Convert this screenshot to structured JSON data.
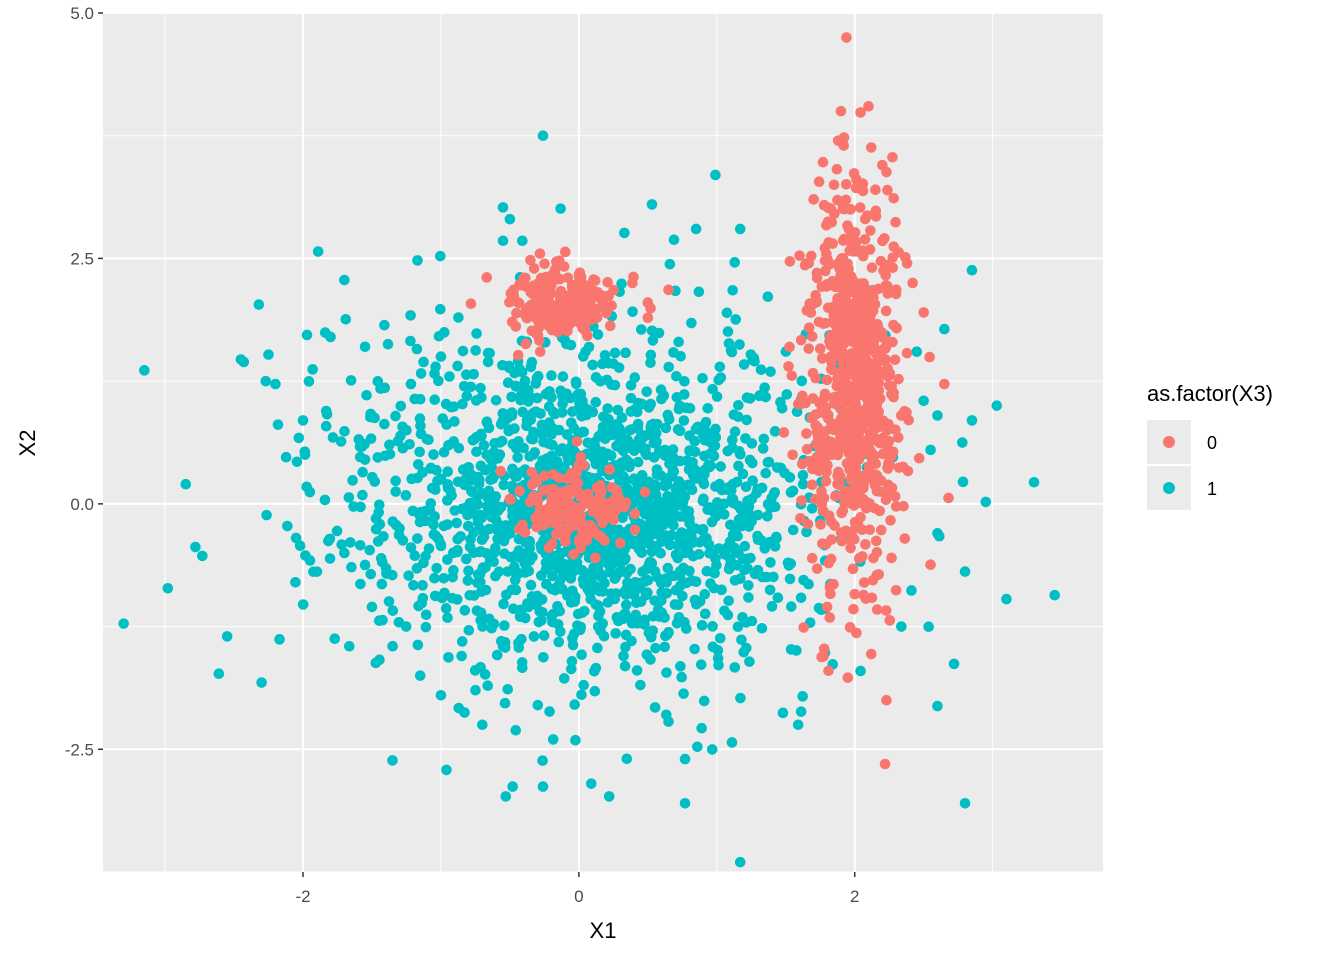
{
  "chart_data": {
    "type": "scatter",
    "title": "",
    "xlabel": "X1",
    "ylabel": "X2",
    "xlim": [
      -3.45,
      3.8
    ],
    "ylim": [
      -3.75,
      5.0
    ],
    "x_ticks": [
      -2,
      0,
      2
    ],
    "y_ticks": [
      -2.5,
      0.0,
      2.5,
      5.0
    ],
    "x_tick_labels": [
      "-2",
      "0",
      "2"
    ],
    "y_tick_labels": [
      "-2.5",
      "0.0",
      "2.5",
      "5.0"
    ],
    "grid": true,
    "panel_background": "#ebebeb",
    "legend": {
      "title": "as.factor(X3)",
      "position": "right",
      "entries": [
        {
          "label": "0",
          "color": "#f8766d"
        },
        {
          "label": "1",
          "color": "#00bfc4"
        }
      ]
    },
    "series": [
      {
        "name": "1",
        "color": "#00bfc4",
        "points": [
          [
            -0.26,
            3.75
          ],
          [
            0.99,
            3.35
          ],
          [
            -0.55,
            3.02
          ],
          [
            0.53,
            3.05
          ],
          [
            -0.5,
            2.9
          ],
          [
            -0.55,
            2.68
          ],
          [
            -0.41,
            2.68
          ],
          [
            0.33,
            2.76
          ],
          [
            0.69,
            2.69
          ],
          [
            0.85,
            2.8
          ],
          [
            1.17,
            2.8
          ],
          [
            -1.89,
            2.57
          ],
          [
            -1.17,
            2.48
          ],
          [
            -2.32,
            2.03
          ],
          [
            1.13,
            2.46
          ],
          [
            2.85,
            2.38
          ],
          [
            -1.7,
            2.28
          ],
          [
            1.37,
            2.11
          ],
          [
            0.7,
            2.17
          ],
          [
            0.87,
            2.16
          ],
          [
            -3.15,
            1.36
          ],
          [
            -2.45,
            1.47
          ],
          [
            -2.25,
            1.52
          ],
          [
            -2.27,
            1.25
          ],
          [
            -2.2,
            1.22
          ],
          [
            -1.93,
            1.37
          ],
          [
            -1.69,
            1.88
          ],
          [
            -1.41,
            1.82
          ],
          [
            -1.22,
            1.92
          ],
          [
            -1.8,
            1.7
          ],
          [
            2.65,
            1.78
          ],
          [
            3.03,
            1.0
          ],
          [
            3.3,
            0.22
          ],
          [
            2.85,
            0.85
          ],
          [
            3.45,
            -0.93
          ],
          [
            3.1,
            -0.97
          ],
          [
            2.8,
            -0.69
          ],
          [
            2.72,
            -1.63
          ],
          [
            2.6,
            -2.06
          ],
          [
            2.8,
            -3.05
          ],
          [
            1.17,
            -3.65
          ],
          [
            0.77,
            -3.05
          ],
          [
            0.22,
            -2.98
          ],
          [
            -0.53,
            -2.98
          ],
          [
            -0.48,
            -2.88
          ],
          [
            -0.26,
            -2.88
          ],
          [
            0.09,
            -2.85
          ],
          [
            -0.96,
            -2.71
          ],
          [
            1.11,
            -2.43
          ],
          [
            -3.3,
            -1.22
          ],
          [
            -2.98,
            -0.86
          ],
          [
            -2.61,
            -1.73
          ],
          [
            -2.3,
            -1.82
          ],
          [
            -2.73,
            -0.53
          ],
          [
            -2.55,
            -1.35
          ],
          [
            -2.17,
            -1.38
          ],
          [
            -2.85,
            0.2
          ],
          [
            -2.78,
            -0.44
          ],
          [
            1.59,
            -2.25
          ],
          [
            0.77,
            -2.6
          ],
          [
            2.6,
            -0.3
          ],
          [
            2.55,
            0.55
          ],
          [
            2.95,
            0.02
          ],
          [
            2.6,
            0.9
          ],
          [
            2.5,
            1.05
          ],
          [
            2.45,
            1.55
          ],
          [
            -2.0,
            0.85
          ],
          [
            -1.95,
            0.12
          ],
          [
            -1.55,
            0.45
          ],
          [
            -1.7,
            -0.5
          ],
          [
            -1.5,
            -1.05
          ],
          [
            -1.35,
            -1.45
          ],
          [
            -1.15,
            -1.75
          ],
          [
            -1.3,
            -0.25
          ],
          [
            -1.25,
            0.75
          ],
          [
            -1.55,
            1.6
          ],
          [
            -1.0,
            1.5
          ],
          [
            -1.0,
            -1.95
          ],
          [
            -0.85,
            -1.55
          ],
          [
            -0.7,
            -2.25
          ]
        ],
        "cluster": {
          "cx": 0.08,
          "cy": -0.02,
          "sx": 0.82,
          "sy": 0.82,
          "count": 1700,
          "seed": 17
        }
      },
      {
        "name": "0",
        "color": "#f8766d",
        "points": [
          [
            1.94,
            4.75
          ],
          [
            2.1,
            4.05
          ],
          [
            1.9,
            4.0
          ],
          [
            2.12,
            3.63
          ],
          [
            1.88,
            3.7
          ],
          [
            1.92,
            3.65
          ],
          [
            1.77,
            3.48
          ],
          [
            1.85,
            3.25
          ],
          [
            2.2,
            3.45
          ],
          [
            2.23,
            3.38
          ],
          [
            2.15,
            3.2
          ],
          [
            1.97,
            3.0
          ],
          [
            1.53,
            2.47
          ],
          [
            1.64,
            2.43
          ],
          [
            2.38,
            2.45
          ],
          [
            2.42,
            2.25
          ],
          [
            2.5,
            1.95
          ],
          [
            2.68,
            0.06
          ],
          [
            2.55,
            -0.62
          ],
          [
            2.3,
            -0.88
          ],
          [
            2.0,
            -0.92
          ],
          [
            1.8,
            -1.05
          ],
          [
            1.63,
            -1.26
          ],
          [
            2.12,
            -1.53
          ],
          [
            1.76,
            -1.56
          ],
          [
            1.81,
            -1.7
          ],
          [
            1.95,
            -1.77
          ],
          [
            2.23,
            -2.0
          ],
          [
            2.22,
            -2.65
          ],
          [
            0.65,
            2.18
          ],
          [
            0.5,
            2.05
          ],
          [
            -0.28,
            1.55
          ],
          [
            0.12,
            -0.55
          ],
          [
            0.3,
            -0.4
          ],
          [
            0.48,
            0.12
          ],
          [
            -0.5,
            0.05
          ],
          [
            2.65,
            1.22
          ],
          [
            1.52,
            1.4
          ],
          [
            1.62,
            1.1
          ],
          [
            1.55,
            0.5
          ]
        ],
        "clusters": [
          {
            "cx": 2.0,
            "cy": 1.2,
            "sx": 0.17,
            "sy": 0.95,
            "count": 700,
            "seed": 31
          },
          {
            "cx": -0.12,
            "cy": 2.05,
            "sx": 0.2,
            "sy": 0.17,
            "count": 230,
            "seed": 47
          },
          {
            "cx": -0.05,
            "cy": -0.05,
            "sx": 0.18,
            "sy": 0.18,
            "count": 180,
            "seed": 59
          }
        ]
      }
    ]
  }
}
